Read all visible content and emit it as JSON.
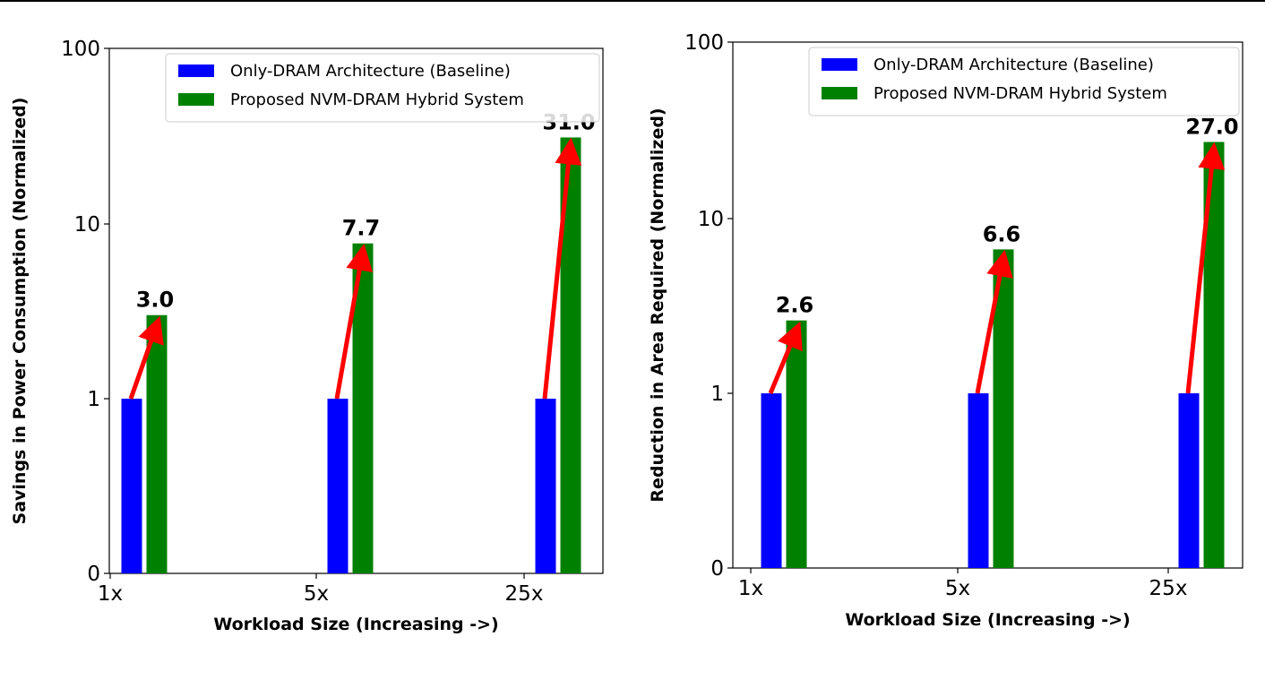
{
  "chart_data": [
    {
      "type": "bar",
      "title": "",
      "xlabel": "Workload Size (Increasing ->)",
      "ylabel": "Savings in Power Consumption (Normalized)",
      "yscale": "log",
      "ylim": [
        0,
        100
      ],
      "yticks": [
        "0",
        "1",
        "10",
        "100"
      ],
      "categories": [
        "1x",
        "5x",
        "25x"
      ],
      "series": [
        {
          "name": "Only-DRAM Architecture (Baseline)",
          "color": "#0000ff",
          "values": [
            1,
            1,
            1
          ]
        },
        {
          "name": "Proposed NVM-DRAM Hybrid System",
          "color": "#008000",
          "values": [
            3.0,
            7.7,
            31.0
          ]
        }
      ],
      "data_labels": [
        "3.0",
        "7.7",
        "31.0"
      ],
      "annotations": "red arrows from baseline bars to hybrid bars",
      "legend_position": "top-right",
      "grid": false
    },
    {
      "type": "bar",
      "title": "",
      "xlabel": "Workload Size (Increasing ->)",
      "ylabel": "Reduction in Area Required (Normalized)",
      "yscale": "log",
      "ylim": [
        0,
        100
      ],
      "yticks": [
        "0",
        "1",
        "10",
        "100"
      ],
      "categories": [
        "1x",
        "5x",
        "25x"
      ],
      "series": [
        {
          "name": "Only-DRAM Architecture (Baseline)",
          "color": "#0000ff",
          "values": [
            1,
            1,
            1
          ]
        },
        {
          "name": "Proposed NVM-DRAM Hybrid System",
          "color": "#008000",
          "values": [
            2.6,
            6.6,
            27.0
          ]
        }
      ],
      "data_labels": [
        "2.6",
        "6.6",
        "27.0"
      ],
      "annotations": "red arrows from baseline bars to hybrid bars",
      "legend_position": "top-right",
      "grid": false
    }
  ],
  "arrow_color": "#ff0000"
}
